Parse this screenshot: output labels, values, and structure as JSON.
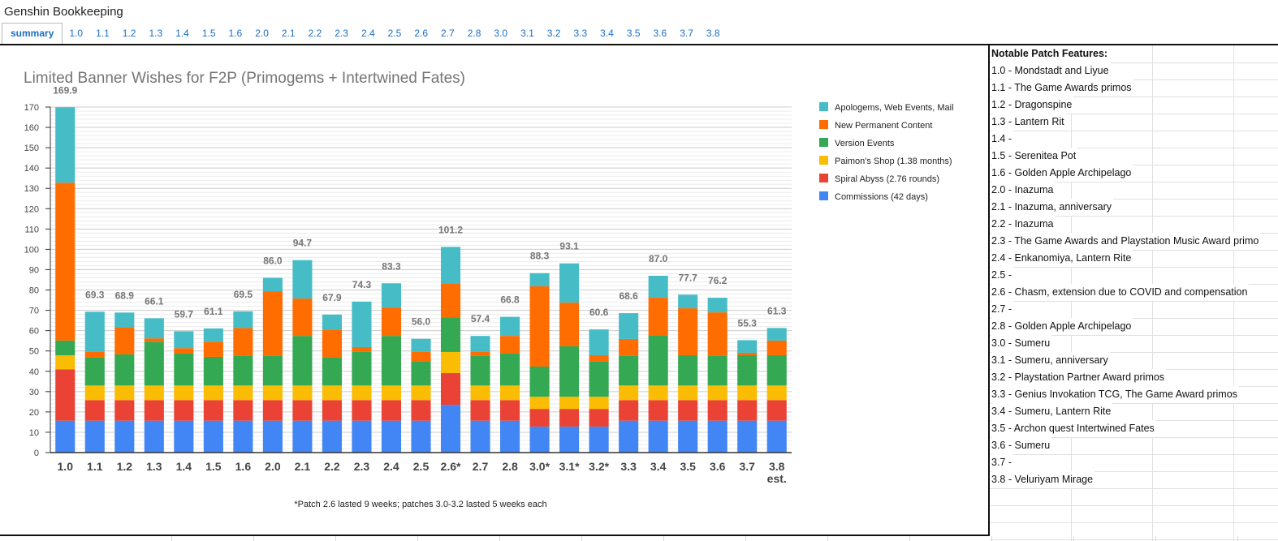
{
  "app": {
    "title": "Genshin Bookkeeping"
  },
  "tabs": [
    {
      "label": "summary",
      "active": true
    },
    {
      "label": "1.0"
    },
    {
      "label": "1.1"
    },
    {
      "label": "1.2"
    },
    {
      "label": "1.3"
    },
    {
      "label": "1.4"
    },
    {
      "label": "1.5"
    },
    {
      "label": "1.6"
    },
    {
      "label": "2.0"
    },
    {
      "label": "2.1"
    },
    {
      "label": "2.2"
    },
    {
      "label": "2.3"
    },
    {
      "label": "2.4"
    },
    {
      "label": "2.5"
    },
    {
      "label": "2.6"
    },
    {
      "label": "2.7"
    },
    {
      "label": "2.8"
    },
    {
      "label": "3.0"
    },
    {
      "label": "3.1"
    },
    {
      "label": "3.2"
    },
    {
      "label": "3.3"
    },
    {
      "label": "3.4"
    },
    {
      "label": "3.5"
    },
    {
      "label": "3.6"
    },
    {
      "label": "3.7"
    },
    {
      "label": "3.8"
    }
  ],
  "chart_data": {
    "type": "bar",
    "stacked": true,
    "title": "Limited Banner Wishes for F2P (Primogems + Intertwined Fates)",
    "footnote": "*Patch 2.6 lasted 9 weeks; patches 3.0-3.2 lasted 5 weeks each",
    "xlabel": "",
    "ylabel": "",
    "ylim": [
      0,
      170
    ],
    "yticks": [
      0,
      10,
      20,
      30,
      40,
      50,
      60,
      70,
      80,
      90,
      100,
      110,
      120,
      130,
      140,
      150,
      160,
      170
    ],
    "grid": true,
    "legend_position": "right",
    "categories": [
      "1.0",
      "1.1",
      "1.2",
      "1.3",
      "1.4",
      "1.5",
      "1.6",
      "2.0",
      "2.1",
      "2.2",
      "2.3",
      "2.4",
      "2.5",
      "2.6*",
      "2.7",
      "2.8",
      "3.0*",
      "3.1*",
      "3.2*",
      "3.3",
      "3.4",
      "3.5",
      "3.6",
      "3.7",
      "3.8 est."
    ],
    "category_lines": [
      [
        "1.0"
      ],
      [
        "1.1"
      ],
      [
        "1.2"
      ],
      [
        "1.3"
      ],
      [
        "1.4"
      ],
      [
        "1.5"
      ],
      [
        "1.6"
      ],
      [
        "2.0"
      ],
      [
        "2.1"
      ],
      [
        "2.2"
      ],
      [
        "2.3"
      ],
      [
        "2.4"
      ],
      [
        "2.5"
      ],
      [
        "2.6*"
      ],
      [
        "2.7"
      ],
      [
        "2.8"
      ],
      [
        "3.0*"
      ],
      [
        "3.1*"
      ],
      [
        "3.2*"
      ],
      [
        "3.3"
      ],
      [
        "3.4"
      ],
      [
        "3.5"
      ],
      [
        "3.6"
      ],
      [
        "3.7"
      ],
      [
        "3.8",
        "est."
      ]
    ],
    "totals": [
      169.9,
      69.3,
      68.9,
      66.1,
      59.7,
      61.1,
      69.5,
      86.0,
      94.7,
      67.9,
      74.3,
      83.3,
      56.0,
      101.2,
      57.4,
      66.8,
      88.3,
      93.1,
      60.6,
      68.6,
      87.0,
      77.7,
      76.2,
      55.3,
      61.3
    ],
    "total_labels": [
      "169.9",
      "69.3",
      "68.9",
      "66.1",
      "59.7",
      "61.1",
      "69.5",
      "86.0",
      "94.7",
      "67.9",
      "74.3",
      "83.3",
      "56.0",
      "101.2",
      "57.4",
      "66.8",
      "88.3",
      "93.1",
      "60.6",
      "68.6",
      "87.0",
      "77.7",
      "76.2",
      "55.3",
      "61.3"
    ],
    "series": [
      {
        "name": "Commissions (42 days)",
        "color": "#4285f4",
        "values": [
          15.7,
          15.7,
          15.7,
          15.7,
          15.7,
          15.7,
          15.7,
          15.7,
          15.7,
          15.7,
          15.7,
          15.7,
          15.7,
          23.5,
          15.7,
          15.7,
          12.8,
          12.8,
          12.8,
          15.7,
          15.7,
          15.7,
          15.7,
          15.7,
          15.7
        ]
      },
      {
        "name": "Spiral Abyss (2.76 rounds)",
        "color": "#ea4335",
        "values": [
          25.2,
          10.1,
          10.1,
          10.1,
          10.1,
          10.1,
          10.1,
          10.1,
          10.1,
          10.1,
          10.1,
          10.1,
          10.1,
          15.6,
          10.1,
          10.1,
          8.7,
          8.7,
          8.7,
          10.1,
          10.1,
          10.1,
          10.1,
          10.1,
          10.1
        ]
      },
      {
        "name": "Paimon's Shop (1.38 months)",
        "color": "#fbbc04",
        "values": [
          7.0,
          7.2,
          7.2,
          7.2,
          7.2,
          7.2,
          7.2,
          7.2,
          7.2,
          7.2,
          7.2,
          7.2,
          7.2,
          10.4,
          7.2,
          7.2,
          6.0,
          6.0,
          6.0,
          7.2,
          7.2,
          7.2,
          7.2,
          7.2,
          7.2
        ]
      },
      {
        "name": "Version Events",
        "color": "#34a853",
        "values": [
          7.2,
          13.7,
          15.3,
          21.6,
          15.7,
          14.1,
          14.5,
          14.5,
          24.4,
          13.7,
          16.5,
          24.4,
          11.7,
          17.1,
          14.5,
          15.7,
          14.8,
          24.8,
          17.2,
          14.5,
          24.8,
          14.9,
          14.5,
          14.9,
          14.9
        ]
      },
      {
        "name": "New Permanent Content",
        "color": "#ff6d01",
        "values": [
          77.7,
          2.8,
          13.4,
          1.6,
          2.7,
          7.5,
          13.8,
          31.9,
          18.4,
          13.9,
          2.4,
          14.0,
          4.8,
          16.4,
          2.0,
          8.7,
          39.5,
          21.5,
          3.2,
          8.4,
          18.4,
          23.1,
          21.5,
          1.2,
          7.2
        ]
      },
      {
        "name": "Apologems, Web Events, Mail",
        "color": "#46bdc6",
        "values": [
          37.1,
          19.8,
          7.2,
          9.9,
          8.3,
          6.5,
          8.2,
          6.6,
          18.9,
          7.3,
          22.4,
          11.9,
          6.5,
          18.2,
          7.9,
          9.4,
          6.5,
          19.3,
          12.7,
          12.7,
          10.8,
          6.7,
          7.2,
          6.2,
          6.2
        ]
      }
    ],
    "legend_order": [
      "Apologems, Web Events, Mail",
      "New Permanent Content",
      "Version Events",
      "Paimon's Shop (1.38 months)",
      "Spiral Abyss (2.76 rounds)",
      "Commissions (42 days)"
    ]
  },
  "notes": {
    "header": "Notable Patch Features:",
    "items": [
      "1.0 - Mondstadt and Liyue",
      "1.1 - The Game Awards primos",
      "1.2 - Dragonspine",
      "1.3 - Lantern Rit",
      "1.4 -",
      "1.5 - Serenitea Pot",
      "1.6 - Golden Apple Archipelago",
      "2.0 - Inazuma",
      "2.1 - Inazuma, anniversary",
      "2.2 - Inazuma",
      "2.3 - The Game Awards and Playstation Music Award primo",
      "2.4 - Enkanomiya, Lantern Rite",
      "2.5 -",
      "2.6 - Chasm, extension due to COVID and compensation",
      "2.7 -",
      "2.8 - Golden Apple Archipelago",
      "3.0 - Sumeru",
      "3.1 - Sumeru, anniversary",
      "3.2 - Playstation Partner Award primos",
      "3.3 - Genius Invokation TCG, The Game Award primos",
      "3.4 - Sumeru, Lantern Rite",
      "3.5 - Archon quest Intertwined Fates",
      "3.6 - Sumeru",
      "3.7 -",
      "3.8 - Veluriyam Mirage"
    ]
  }
}
